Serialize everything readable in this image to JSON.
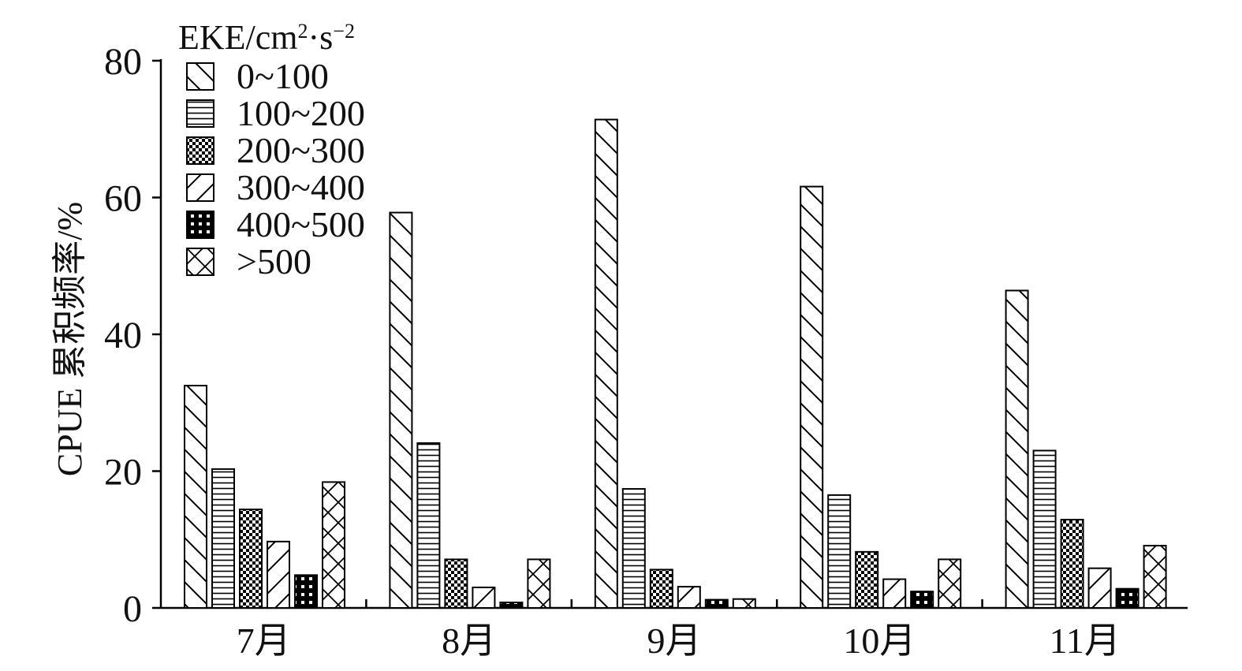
{
  "chart_data": {
    "type": "bar",
    "title": "",
    "xlabel": "",
    "ylabel": "CPUE 累积频率/%",
    "ylim": [
      0,
      80
    ],
    "yticks": [
      "0",
      "20",
      "40",
      "60",
      "80"
    ],
    "grid": false,
    "legend_title": "EKE/cm²·s⁻²",
    "legend_placement": "top-left",
    "categories": [
      "7月",
      "8月",
      "9月",
      "10月",
      "11月"
    ],
    "series": [
      {
        "name": "0~100",
        "pattern": "back-diagonal",
        "values": [
          32.5,
          57.8,
          71.4,
          61.6,
          46.4
        ]
      },
      {
        "name": "100~200",
        "pattern": "horizontal",
        "values": [
          20.3,
          24.1,
          17.4,
          16.5,
          23.0
        ]
      },
      {
        "name": "200~300",
        "pattern": "checker",
        "values": [
          14.4,
          7.1,
          5.6,
          8.2,
          12.9
        ]
      },
      {
        "name": "300~400",
        "pattern": "forward-diagonal",
        "values": [
          9.7,
          3.0,
          3.1,
          4.2,
          5.8
        ]
      },
      {
        "name": "400~500",
        "pattern": "black-grid",
        "values": [
          4.8,
          0.8,
          1.2,
          2.4,
          2.8
        ]
      },
      {
        "name": ">500",
        "pattern": "cross-hatch",
        "values": [
          18.4,
          7.1,
          1.3,
          7.1,
          9.1
        ]
      }
    ]
  }
}
